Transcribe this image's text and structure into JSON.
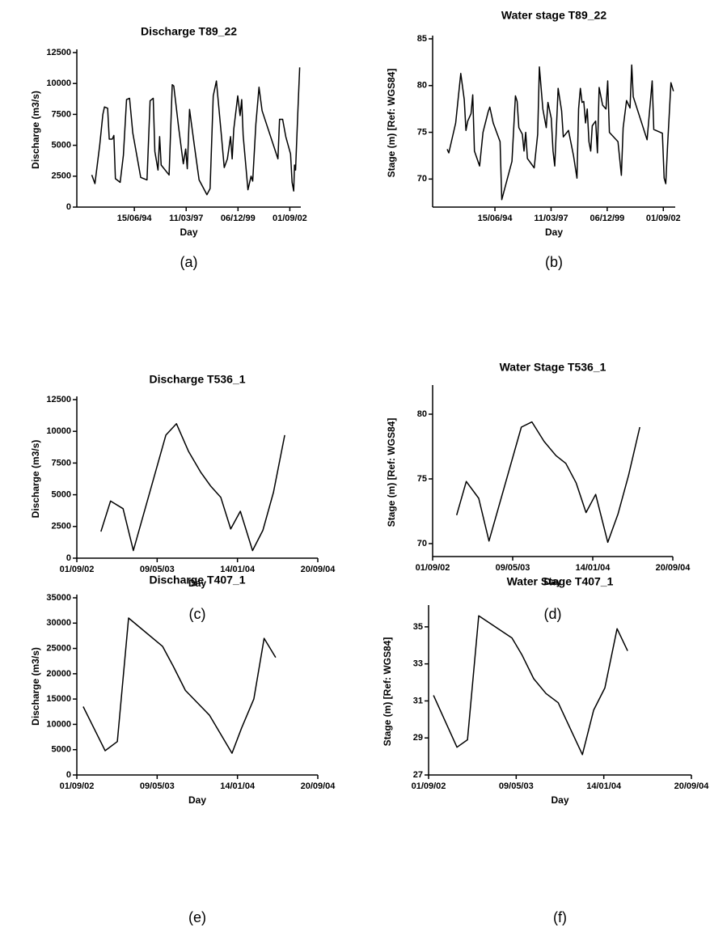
{
  "chart_data": [
    {
      "type": "line",
      "title": "Discharge T89_22",
      "x_label": "Day",
      "y_label": "Discharge (m3/s)",
      "caption": "(a)",
      "color": "#000000",
      "xlim": [
        "1991-06-01",
        "2003-04-01"
      ],
      "ylim": [
        0,
        12500
      ],
      "xticks": [
        {
          "value": "1994-06-15",
          "label": "15/06/94"
        },
        {
          "value": "1997-03-11",
          "label": "11/03/97"
        },
        {
          "value": "1999-12-06",
          "label": "06/12/99"
        },
        {
          "value": "2002-09-01",
          "label": "01/09/02"
        }
      ],
      "yticks": [
        0,
        2500,
        5000,
        7500,
        10000,
        12500
      ],
      "x": [
        "1992-03-15",
        "1992-05-15",
        "1992-08-15",
        "1992-10-15",
        "1992-11-15",
        "1993-01-15",
        "1993-02-15",
        "1993-04-15",
        "1993-05-15",
        "1993-06-15",
        "1993-09-15",
        "1993-11-15",
        "1994-01-15",
        "1994-03-15",
        "1994-05-15",
        "1994-10-15",
        "1995-02-15",
        "1995-04-15",
        "1995-06-15",
        "1995-07-15",
        "1995-09-15",
        "1995-10-15",
        "1995-11-15",
        "1996-04-15",
        "1996-06-15",
        "1996-07-15",
        "1996-10-15",
        "1996-12-15",
        "1997-01-15",
        "1997-03-01",
        "1997-04-01",
        "1997-05-15",
        "1997-08-15",
        "1997-11-15",
        "1998-04-15",
        "1998-06-15",
        "1998-08-15",
        "1998-10-15",
        "1999-01-15",
        "1999-03-15",
        "1999-05-15",
        "1999-07-15",
        "1999-08-15",
        "1999-09-15",
        "1999-12-01",
        "2000-01-15",
        "2000-02-15",
        "2000-03-15",
        "2000-06-15",
        "2000-08-15",
        "2000-09-15",
        "2000-11-15",
        "2001-01-15",
        "2001-03-15",
        "2002-01-15",
        "2002-02-15",
        "2002-04-15",
        "2002-06-15",
        "2002-09-15",
        "2002-10-15",
        "2002-11-15",
        "2002-12-01",
        "2002-12-20",
        "2003-02-01",
        "2003-03-10"
      ],
      "values": [
        2600,
        1900,
        5000,
        7500,
        8100,
        8000,
        5500,
        5500,
        5800,
        2300,
        2000,
        4200,
        8700,
        8800,
        6000,
        2400,
        2200,
        8600,
        8800,
        4500,
        3000,
        5700,
        3400,
        2600,
        9900,
        9800,
        6500,
        4500,
        3500,
        4700,
        3100,
        7900,
        5000,
        2200,
        1000,
        1500,
        9000,
        10200,
        6000,
        3200,
        3900,
        5700,
        3900,
        6300,
        9000,
        7400,
        8700,
        5800,
        1400,
        2500,
        2100,
        6700,
        9700,
        7800,
        3900,
        7100,
        7100,
        5700,
        4300,
        2000,
        1300,
        3400,
        3000,
        7500,
        11300
      ]
    },
    {
      "type": "line",
      "title": "Water stage T89_22",
      "x_label": "Day",
      "y_label": "Stage (m) [Ref: WGS84]",
      "caption": "(b)",
      "color": "#000000",
      "xlim": [
        "1991-06-01",
        "2003-04-01"
      ],
      "ylim": [
        67,
        85
      ],
      "xticks": [
        {
          "value": "1994-06-15",
          "label": "15/06/94"
        },
        {
          "value": "1997-03-11",
          "label": "11/03/97"
        },
        {
          "value": "1999-12-06",
          "label": "06/12/99"
        },
        {
          "value": "2002-09-01",
          "label": "01/09/02"
        }
      ],
      "yticks": [
        70,
        75,
        80,
        85
      ],
      "x": [
        "1992-02-15",
        "1992-03-15",
        "1992-07-15",
        "1992-10-15",
        "1992-12-15",
        "1993-01-15",
        "1993-02-15",
        "1993-04-15",
        "1993-05-15",
        "1993-06-15",
        "1993-09-15",
        "1993-11-15",
        "1994-02-15",
        "1994-03-15",
        "1994-05-15",
        "1994-09-15",
        "1994-10-15",
        "1995-04-15",
        "1995-06-15",
        "1995-07-15",
        "1995-08-15",
        "1995-10-15",
        "1995-11-15",
        "1995-12-15",
        "1996-01-15",
        "1996-05-15",
        "1996-07-15",
        "1996-08-15",
        "1996-10-15",
        "1996-12-15",
        "1997-01-15",
        "1997-03-15",
        "1997-04-15",
        "1997-05-15",
        "1997-07-15",
        "1997-09-15",
        "1997-10-15",
        "1998-01-15",
        "1998-04-15",
        "1998-06-15",
        "1998-07-15",
        "1998-08-15",
        "1998-09-15",
        "1998-10-15",
        "1998-11-15",
        "1998-12-15",
        "1999-01-15",
        "1999-02-15",
        "1999-03-15",
        "1999-05-15",
        "1999-06-15",
        "1999-07-15",
        "1999-09-15",
        "1999-11-15",
        "1999-12-15",
        "2000-01-15",
        "2000-06-15",
        "2000-08-15",
        "2000-09-15",
        "2000-11-15",
        "2001-01-15",
        "2001-02-15",
        "2001-03-15",
        "2001-11-15",
        "2002-02-15",
        "2002-03-15",
        "2002-08-15",
        "2002-09-15",
        "2002-10-15",
        "2002-11-15",
        "2003-01-15",
        "2003-03-01"
      ],
      "values": [
        73.2,
        72.8,
        76,
        81.3,
        78.5,
        75.2,
        76.2,
        77,
        79,
        73,
        71.4,
        75,
        77.2,
        77.7,
        76,
        74,
        67.8,
        71.9,
        78.9,
        78.3,
        75.5,
        74.8,
        73,
        75,
        72.2,
        71.2,
        74.8,
        82,
        77.5,
        75.5,
        78.2,
        76.5,
        73,
        71.4,
        79.7,
        77.3,
        74.5,
        75.2,
        72.5,
        70.1,
        77.5,
        79.7,
        78.2,
        78.3,
        76,
        77.5,
        74,
        73,
        75.7,
        76.2,
        72.8,
        79.8,
        77.9,
        77.5,
        80.5,
        75,
        74,
        70.4,
        75.5,
        78.4,
        77.6,
        82.2,
        78.8,
        74.2,
        80.5,
        75.3,
        74.9,
        70.1,
        69.5,
        73.5,
        80.3,
        79.4
      ]
    },
    {
      "type": "line",
      "title": "Discharge T536_1",
      "x_label": "Day",
      "y_label": "Discharge (m3/s)",
      "caption": "(c)",
      "color": "#000000",
      "xlim": [
        "2002-09-01",
        "2004-09-20"
      ],
      "ylim": [
        0,
        12500
      ],
      "xticks": [
        {
          "value": "2002-09-01",
          "label": "01/09/02"
        },
        {
          "value": "2003-05-09",
          "label": "09/05/03"
        },
        {
          "value": "2004-01-14",
          "label": "14/01/04"
        },
        {
          "value": "2004-09-20",
          "label": "20/09/04"
        }
      ],
      "yticks": [
        0,
        2500,
        5000,
        7500,
        10000,
        12500
      ],
      "x": [
        "2002-11-15",
        "2002-12-15",
        "2003-01-23",
        "2003-02-24",
        "2003-06-05",
        "2003-07-08",
        "2003-08-15",
        "2003-09-21",
        "2003-10-22",
        "2003-11-23",
        "2003-12-24",
        "2004-01-23",
        "2004-03-01",
        "2004-04-02",
        "2004-05-05",
        "2004-06-09"
      ],
      "values": [
        2100,
        4500,
        3900,
        600,
        9700,
        10600,
        8400,
        6800,
        5700,
        4800,
        2300,
        3700,
        600,
        2200,
        5200,
        9700
      ]
    },
    {
      "type": "line",
      "title": "Water Stage T536_1",
      "x_label": "Day",
      "y_label": "Stage (m) [Ref: WGS84]",
      "caption": "(d)",
      "color": "#000000",
      "xlim": [
        "2002-09-01",
        "2004-09-20"
      ],
      "ylim": [
        69,
        82
      ],
      "xticks": [
        {
          "value": "2002-09-01",
          "label": "01/09/02"
        },
        {
          "value": "2003-05-09",
          "label": "09/05/03"
        },
        {
          "value": "2004-01-14",
          "label": "14/01/04"
        },
        {
          "value": "2004-09-20",
          "label": "20/09/04"
        }
      ],
      "yticks": [
        70,
        75,
        80
      ],
      "x": [
        "2002-11-15",
        "2002-12-15",
        "2003-01-23",
        "2003-02-24",
        "2003-06-05",
        "2003-07-08",
        "2003-08-15",
        "2003-09-21",
        "2003-10-22",
        "2003-11-23",
        "2003-12-24",
        "2004-01-23",
        "2004-03-01",
        "2004-04-02",
        "2004-05-05",
        "2004-06-09"
      ],
      "values": [
        72.2,
        74.8,
        73.5,
        70.2,
        79,
        79.4,
        77.9,
        76.8,
        76.2,
        74.7,
        72.4,
        73.8,
        70.1,
        72.3,
        75.3,
        79
      ]
    },
    {
      "type": "line",
      "title": "Discharge T407_1",
      "x_label": "Day",
      "y_label": "Discharge (m3/s)",
      "caption": "(e)",
      "color": "#000000",
      "xlim": [
        "2002-09-01",
        "2004-09-20"
      ],
      "ylim": [
        0,
        35000
      ],
      "xticks": [
        {
          "value": "2002-09-01",
          "label": "01/09/02"
        },
        {
          "value": "2003-05-09",
          "label": "09/05/03"
        },
        {
          "value": "2004-01-14",
          "label": "14/01/04"
        },
        {
          "value": "2004-09-20",
          "label": "20/09/04"
        }
      ],
      "yticks": [
        0,
        5000,
        10000,
        15000,
        20000,
        25000,
        30000,
        35000
      ],
      "x": [
        "2002-09-21",
        "2002-11-28",
        "2003-01-05",
        "2003-02-09",
        "2003-05-26",
        "2003-06-28",
        "2003-08-05",
        "2003-10-19",
        "2003-12-28",
        "2004-01-27",
        "2004-03-05",
        "2004-04-06",
        "2004-05-12"
      ],
      "values": [
        13500,
        4800,
        6600,
        31000,
        25400,
        21500,
        16700,
        11800,
        4300,
        9300,
        15000,
        27000,
        23200
      ]
    },
    {
      "type": "line",
      "title": "Water Stage T407_1",
      "x_label": "Day",
      "y_label": "Stage (m) [Ref: WGS84]",
      "caption": "(f)",
      "color": "#000000",
      "xlim": [
        "2002-09-01",
        "2004-09-20"
      ],
      "ylim": [
        27,
        36
      ],
      "xticks": [
        {
          "value": "2002-09-01",
          "label": "01/09/02"
        },
        {
          "value": "2003-05-09",
          "label": "09/05/03"
        },
        {
          "value": "2004-01-14",
          "label": "14/01/04"
        },
        {
          "value": "2004-09-20",
          "label": "20/09/04"
        }
      ],
      "yticks": [
        27,
        29,
        31,
        33,
        35
      ],
      "x": [
        "2002-09-15",
        "2002-11-21",
        "2002-12-21",
        "2003-01-22",
        "2003-04-27",
        "2003-05-25",
        "2003-06-28",
        "2003-08-02",
        "2003-09-06",
        "2003-11-14",
        "2003-12-16",
        "2004-01-17",
        "2004-02-21",
        "2004-03-22"
      ],
      "values": [
        31.3,
        28.5,
        28.9,
        35.6,
        34.4,
        33.5,
        32.2,
        31.4,
        30.9,
        28.1,
        30.5,
        31.7,
        34.9,
        33.7
      ]
    }
  ]
}
